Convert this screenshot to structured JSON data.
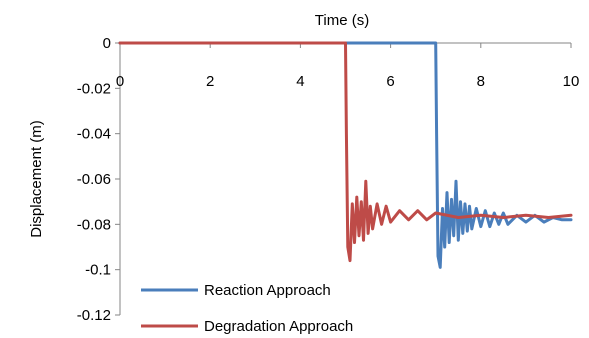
{
  "chart_data": {
    "type": "line",
    "title": "",
    "xlabel": "Time (s)",
    "ylabel": "Displacement (m)",
    "xlim": [
      0,
      10
    ],
    "ylim": [
      -0.12,
      0
    ],
    "x_axis_position": "top (crosses at y = 0)",
    "x_ticks": [
      0,
      2,
      4,
      6,
      8,
      10
    ],
    "y_ticks": [
      0,
      -0.02,
      -0.04,
      -0.06,
      -0.08,
      -0.1,
      -0.12
    ],
    "x_tick_labels": [
      "0",
      "2",
      "4",
      "6",
      "8",
      "10"
    ],
    "y_tick_labels": [
      "0",
      "-0.02",
      "-0.04",
      "-0.06",
      "-0.08",
      "-0.1",
      "-0.12"
    ],
    "grid": false,
    "legend_position": "bottom-left",
    "series": [
      {
        "name": "Reaction Approach",
        "color": "#4A7EBB",
        "x": [
          0,
          6.99,
          7.0,
          7.02,
          7.05,
          7.1,
          7.15,
          7.2,
          7.25,
          7.3,
          7.35,
          7.4,
          7.45,
          7.5,
          7.55,
          7.6,
          7.65,
          7.7,
          7.75,
          7.8,
          7.9,
          8.0,
          8.1,
          8.2,
          8.3,
          8.4,
          8.5,
          8.6,
          8.8,
          9.0,
          9.2,
          9.4,
          9.6,
          9.8,
          10
        ],
        "y": [
          0,
          0,
          0,
          -0.04,
          -0.094,
          -0.099,
          -0.073,
          -0.09,
          -0.066,
          -0.088,
          -0.069,
          -0.085,
          -0.061,
          -0.087,
          -0.07,
          -0.084,
          -0.071,
          -0.083,
          -0.072,
          -0.082,
          -0.073,
          -0.081,
          -0.074,
          -0.081,
          -0.075,
          -0.08,
          -0.075,
          -0.08,
          -0.076,
          -0.079,
          -0.076,
          -0.079,
          -0.077,
          -0.078,
          -0.078
        ]
      },
      {
        "name": "Degradation Approach",
        "color": "#BE4B48",
        "x": [
          0,
          4.99,
          5.0,
          5.02,
          5.05,
          5.1,
          5.15,
          5.2,
          5.25,
          5.3,
          5.35,
          5.4,
          5.45,
          5.5,
          5.55,
          5.6,
          5.7,
          5.8,
          5.9,
          6.0,
          6.2,
          6.4,
          6.6,
          6.8,
          7.0,
          7.5,
          8.0,
          8.5,
          9.0,
          9.5,
          10
        ],
        "y": [
          0,
          0,
          0,
          -0.04,
          -0.09,
          -0.096,
          -0.071,
          -0.088,
          -0.068,
          -0.085,
          -0.07,
          -0.087,
          -0.061,
          -0.084,
          -0.072,
          -0.082,
          -0.071,
          -0.08,
          -0.072,
          -0.079,
          -0.074,
          -0.078,
          -0.074,
          -0.078,
          -0.075,
          -0.077,
          -0.076,
          -0.077,
          -0.076,
          -0.077,
          -0.076
        ]
      }
    ]
  }
}
